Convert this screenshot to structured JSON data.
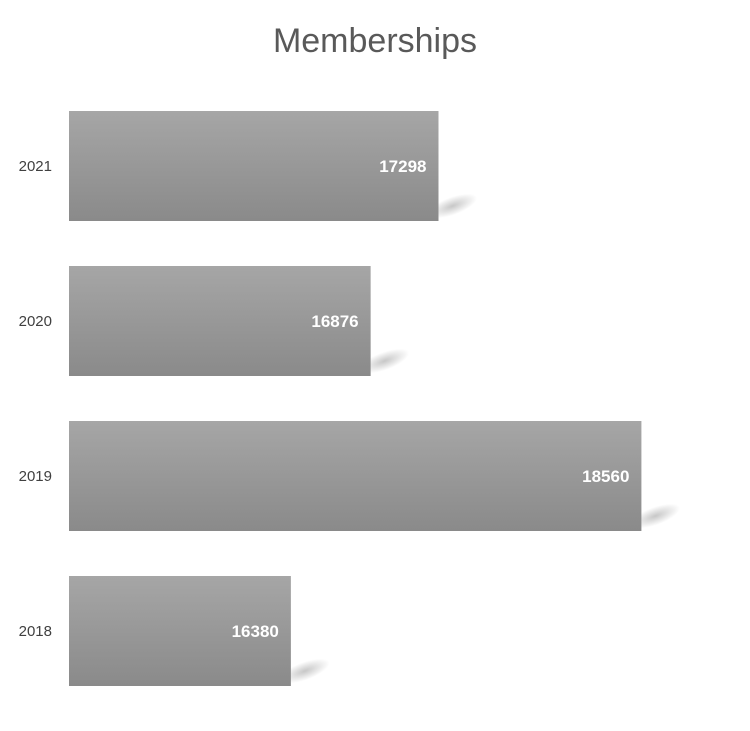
{
  "chart_data": {
    "type": "bar",
    "orientation": "horizontal",
    "title": "Memberships",
    "xlabel": "",
    "ylabel": "",
    "categories": [
      "2021",
      "2020",
      "2019",
      "2018"
    ],
    "values": [
      17298,
      16876,
      18560,
      16380
    ],
    "data_labels": [
      "17298",
      "16876",
      "18560",
      "16380"
    ],
    "xlim": [
      15000,
      18800
    ],
    "grid": false,
    "legend": "none",
    "bar_color": "#999999"
  }
}
